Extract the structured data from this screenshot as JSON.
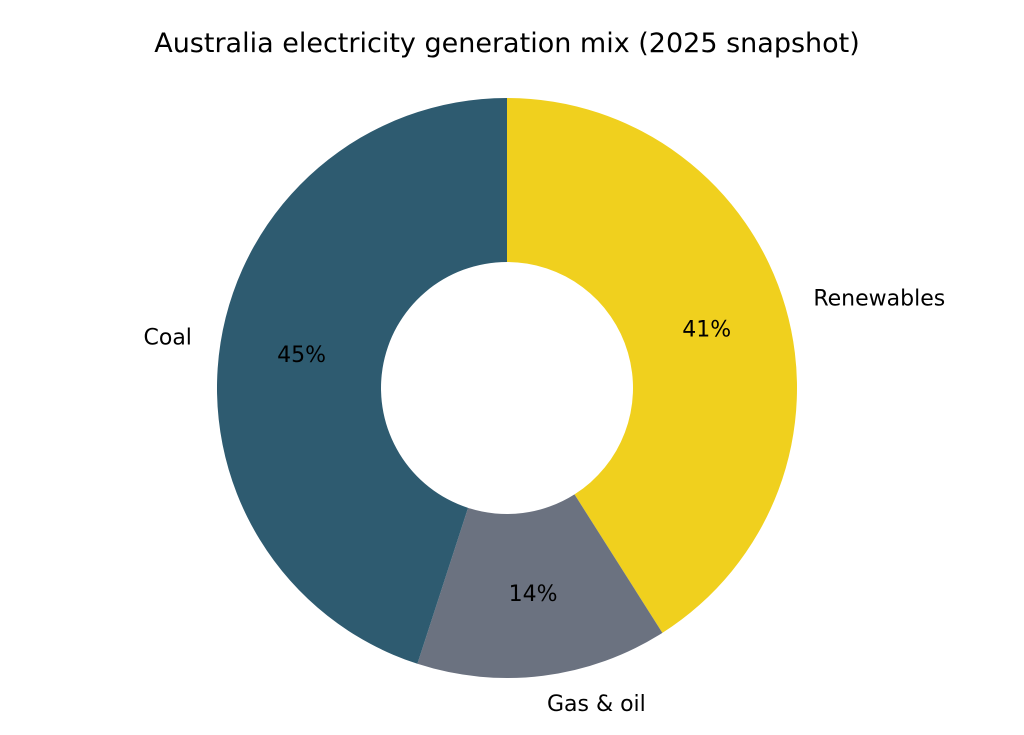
{
  "figure": {
    "background": "#ffffff"
  },
  "chart_data": {
    "type": "pie",
    "subtype": "donut",
    "title": "Australia electricity generation mix (2025 snapshot)",
    "categories": [
      "Renewables",
      "Gas & oil",
      "Coal"
    ],
    "values": [
      41,
      14,
      45
    ],
    "unit": "%",
    "slices": [
      {
        "label": "Renewables",
        "value": 41,
        "pct_label": "41%",
        "color": "#F0D01E"
      },
      {
        "label": "Gas & oil",
        "value": 14,
        "pct_label": "14%",
        "color": "#6B7280"
      },
      {
        "label": "Coal",
        "value": 45,
        "pct_label": "45%",
        "color": "#2E5B70"
      }
    ],
    "start_angle_deg": 90,
    "direction": "clockwise",
    "donut_hole_ratio": 0.434,
    "legend": "none",
    "grid": "off",
    "text_color": "#000000"
  }
}
